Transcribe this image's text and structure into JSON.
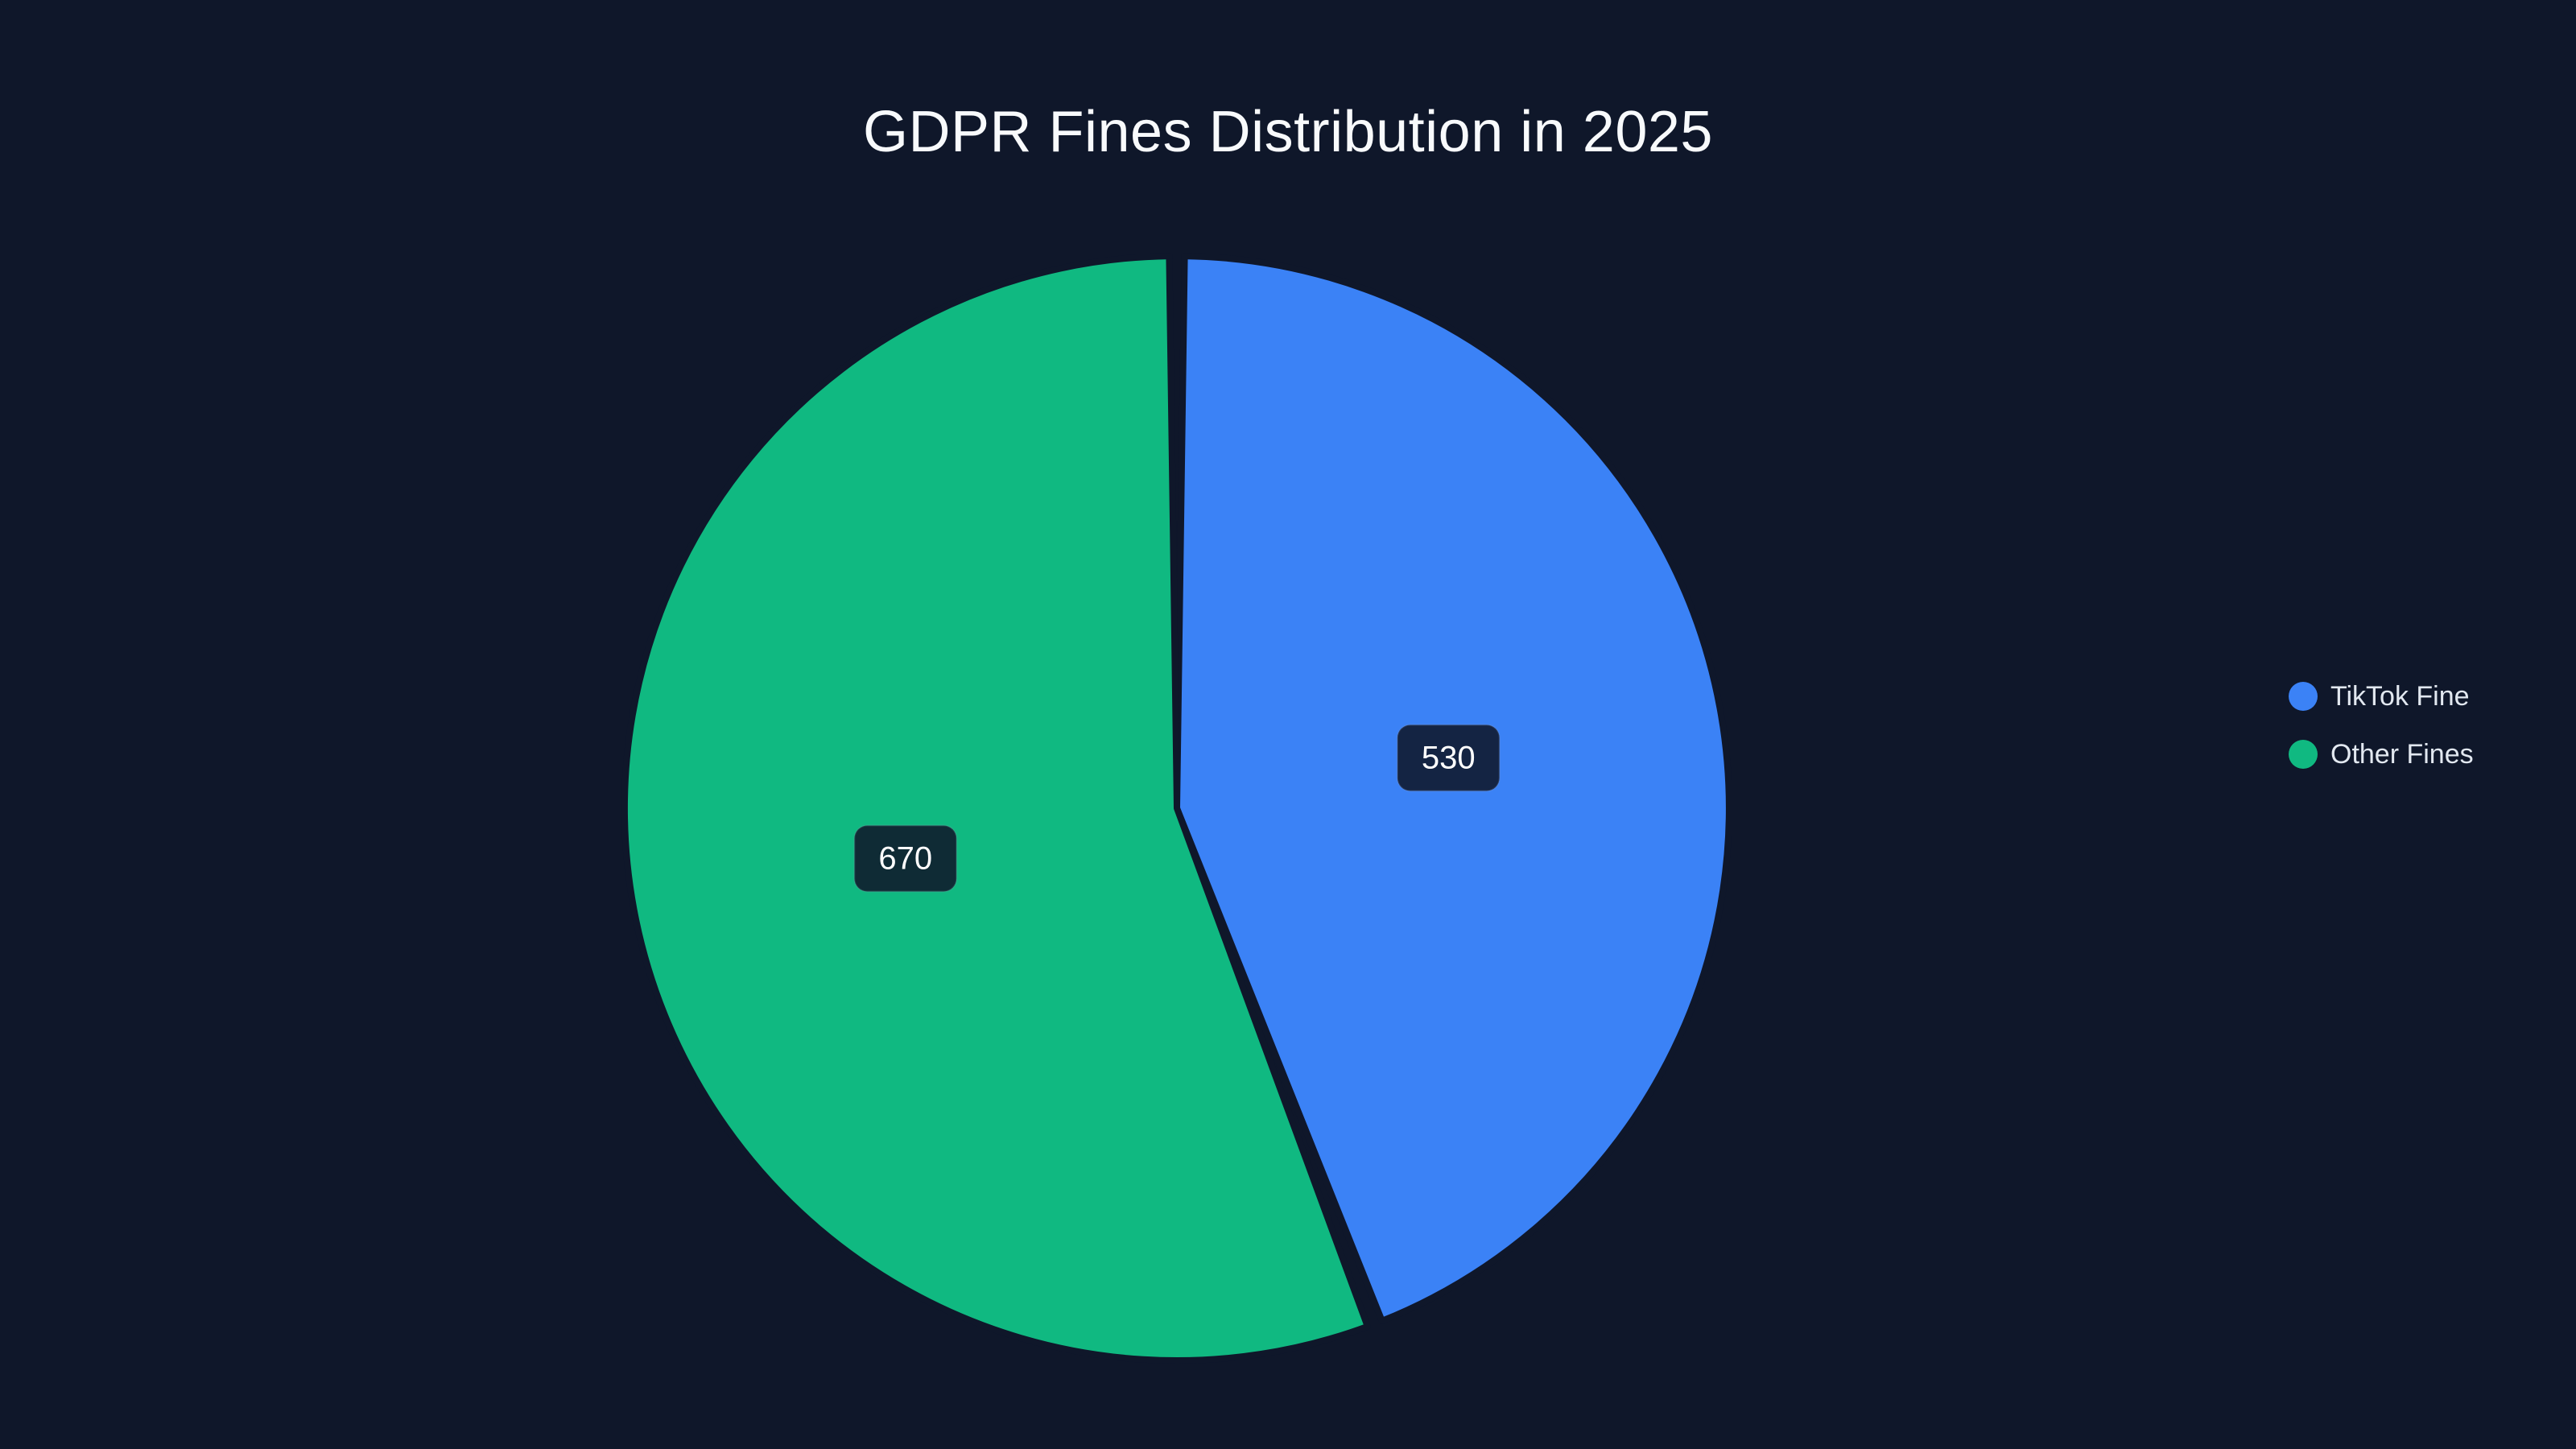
{
  "page": {
    "background_color": "#0f172a"
  },
  "chart_data": {
    "type": "pie",
    "title": "GDPR Fines Distribution in 2025",
    "series": [
      {
        "name": "TikTok Fine",
        "value": 530,
        "color": "#3b82f6"
      },
      {
        "name": "Other Fines",
        "value": 670,
        "color": "#10b981"
      }
    ],
    "label_format": "value",
    "label_text_color": "#ffffff",
    "label_box_color": "rgba(15, 23, 42, 0.88)",
    "slice_border_color": "#0f172a",
    "start_angle": "12-o-clock",
    "direction": "clockwise",
    "legend": {
      "position": "right",
      "text_color": "#e2e8f0",
      "entries": [
        "TikTok Fine",
        "Other Fines"
      ]
    }
  }
}
